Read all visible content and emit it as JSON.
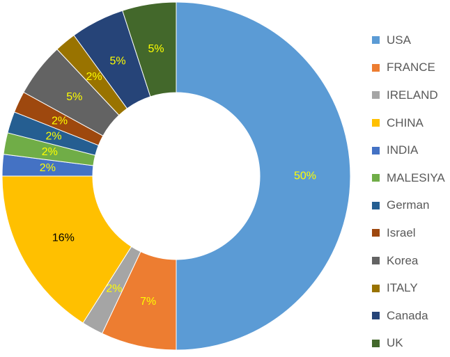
{
  "chart_data": {
    "type": "pie",
    "variant": "donut",
    "title": "",
    "legend_position": "right",
    "slices": [
      {
        "label": "USA",
        "value": 50,
        "display": "50%",
        "color": "#5b9bd5",
        "label_color": "#ffff00"
      },
      {
        "label": "FRANCE",
        "value": 7,
        "display": "7%",
        "color": "#ed7d31",
        "label_color": "#ffff00"
      },
      {
        "label": "IRELAND",
        "value": 2,
        "display": "2%",
        "color": "#a5a5a5",
        "label_color": "#ffff00"
      },
      {
        "label": "CHINA",
        "value": 16,
        "display": "16%",
        "color": "#ffc000",
        "label_color": "#000000"
      },
      {
        "label": "INDIA",
        "value": 2,
        "display": "2%",
        "color": "#4472c4",
        "label_color": "#ffff00"
      },
      {
        "label": "MALESIYA",
        "value": 2,
        "display": "2%",
        "color": "#70ad47",
        "label_color": "#ffff00"
      },
      {
        "label": "German",
        "value": 2,
        "display": "2%",
        "color": "#255e91",
        "label_color": "#ffff00"
      },
      {
        "label": "Israel",
        "value": 2,
        "display": "2%",
        "color": "#9e480e",
        "label_color": "#ffff00"
      },
      {
        "label": "Korea",
        "value": 5,
        "display": "5%",
        "color": "#636363",
        "label_color": "#ffff00"
      },
      {
        "label": "ITALY",
        "value": 2,
        "display": "2%",
        "color": "#997300",
        "label_color": "#ffff00"
      },
      {
        "label": "Canada",
        "value": 5,
        "display": "5%",
        "color": "#264478",
        "label_color": "#ffff00"
      },
      {
        "label": "UK",
        "value": 5,
        "display": "5%",
        "color": "#43682b",
        "label_color": "#ffff00"
      }
    ]
  }
}
